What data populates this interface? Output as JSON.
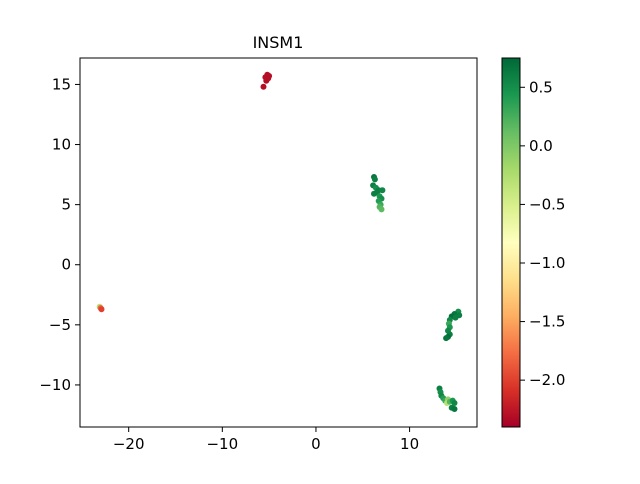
{
  "chart_data": {
    "type": "scatter",
    "title": "INSM1",
    "xlabel": "",
    "ylabel": "",
    "xlim": [
      -25.2,
      17.2
    ],
    "ylim": [
      -13.5,
      17.2
    ],
    "xticks": [
      -20,
      -10,
      0,
      10
    ],
    "yticks": [
      -10,
      -5,
      0,
      5,
      10,
      15
    ],
    "grid": false,
    "colormap": "RdYlGn",
    "colorbar": {
      "vmin": -2.4,
      "vmax": 0.75,
      "ticks": [
        0.5,
        0.0,
        -0.5,
        -1.0,
        -1.5,
        -2.0
      ],
      "stops": [
        "#a50026",
        "#d73027",
        "#f46d43",
        "#fdae61",
        "#fee08b",
        "#ffffbf",
        "#d9ef8b",
        "#a6d96a",
        "#66bd63",
        "#1a9850",
        "#006837"
      ]
    },
    "points": [
      {
        "x": -5.2,
        "y": 15.8,
        "c": -2.3
      },
      {
        "x": -5.0,
        "y": 15.7,
        "c": -2.3
      },
      {
        "x": -5.4,
        "y": 15.6,
        "c": -2.3
      },
      {
        "x": -5.1,
        "y": 15.5,
        "c": -2.3
      },
      {
        "x": -5.3,
        "y": 15.3,
        "c": -2.3
      },
      {
        "x": -5.6,
        "y": 14.8,
        "c": -2.3
      },
      {
        "x": 6.2,
        "y": 7.3,
        "c": 0.65
      },
      {
        "x": 6.3,
        "y": 7.1,
        "c": 0.6
      },
      {
        "x": 6.1,
        "y": 6.6,
        "c": 0.6
      },
      {
        "x": 6.4,
        "y": 6.4,
        "c": 0.5
      },
      {
        "x": 6.7,
        "y": 6.2,
        "c": 0.6
      },
      {
        "x": 7.1,
        "y": 6.2,
        "c": 0.55
      },
      {
        "x": 6.5,
        "y": 6.0,
        "c": 0.6
      },
      {
        "x": 6.2,
        "y": 5.9,
        "c": 0.6
      },
      {
        "x": 6.8,
        "y": 5.7,
        "c": 0.45
      },
      {
        "x": 7.0,
        "y": 5.5,
        "c": 0.5
      },
      {
        "x": 6.7,
        "y": 5.3,
        "c": 0.4
      },
      {
        "x": 6.9,
        "y": 5.0,
        "c": 0.3
      },
      {
        "x": 6.8,
        "y": 4.8,
        "c": 0.2
      },
      {
        "x": 7.0,
        "y": 4.6,
        "c": 0.15
      },
      {
        "x": -23.1,
        "y": -3.5,
        "c": -0.3
      },
      {
        "x": -23.0,
        "y": -3.6,
        "c": -1.8
      },
      {
        "x": -22.9,
        "y": -3.7,
        "c": -2.0
      },
      {
        "x": 15.2,
        "y": -3.9,
        "c": 0.5
      },
      {
        "x": 14.8,
        "y": -4.1,
        "c": 0.65
      },
      {
        "x": 15.3,
        "y": -4.2,
        "c": 0.6
      },
      {
        "x": 14.5,
        "y": -4.3,
        "c": 0.7
      },
      {
        "x": 14.9,
        "y": -4.4,
        "c": 0.6
      },
      {
        "x": 14.3,
        "y": -4.6,
        "c": 0.55
      },
      {
        "x": 14.2,
        "y": -4.9,
        "c": 0.3
      },
      {
        "x": 14.3,
        "y": -5.2,
        "c": 0.45
      },
      {
        "x": 14.1,
        "y": -5.5,
        "c": 0.55
      },
      {
        "x": 14.3,
        "y": -5.8,
        "c": 0.6
      },
      {
        "x": 14.1,
        "y": -6.0,
        "c": 0.7
      },
      {
        "x": 13.9,
        "y": -6.1,
        "c": 0.65
      },
      {
        "x": 13.2,
        "y": -10.3,
        "c": 0.6
      },
      {
        "x": 13.3,
        "y": -10.6,
        "c": 0.5
      },
      {
        "x": 13.4,
        "y": -10.9,
        "c": 0.55
      },
      {
        "x": 13.6,
        "y": -11.1,
        "c": 0.4
      },
      {
        "x": 13.8,
        "y": -11.3,
        "c": 0.3
      },
      {
        "x": 14.1,
        "y": -11.2,
        "c": -0.1
      },
      {
        "x": 14.0,
        "y": -11.5,
        "c": -0.3
      },
      {
        "x": 14.3,
        "y": -11.4,
        "c": 0.2
      },
      {
        "x": 14.6,
        "y": -11.3,
        "c": 0.45
      },
      {
        "x": 14.8,
        "y": -11.5,
        "c": 0.55
      },
      {
        "x": 14.5,
        "y": -11.9,
        "c": 0.6
      },
      {
        "x": 14.8,
        "y": -12.0,
        "c": 0.65
      }
    ]
  }
}
